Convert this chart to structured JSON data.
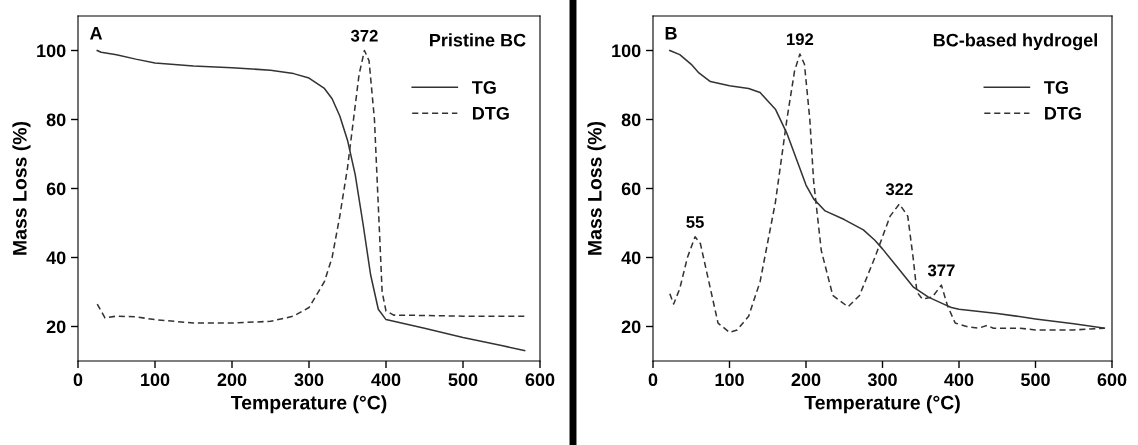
{
  "chart_data": [
    {
      "type": "line",
      "title": "A",
      "xlabel": "Temperature (°C)",
      "ylabel": "Mass Loss (%)",
      "xlim": [
        0,
        600
      ],
      "ylim": [
        10,
        110
      ],
      "xticks": [
        0,
        100,
        200,
        300,
        400,
        500,
        600
      ],
      "yticks": [
        20,
        40,
        60,
        80,
        100
      ],
      "legend": "top right",
      "grid": false,
      "annotations": [
        "Pristine BC",
        {
          "text": "372",
          "x": 372,
          "y": 100
        }
      ],
      "series": [
        {
          "name": "TG",
          "color": "#333333",
          "line_style": "solid",
          "x": [
            25,
            30,
            50,
            75,
            100,
            150,
            200,
            250,
            280,
            300,
            320,
            330,
            340,
            350,
            360,
            370,
            380,
            390,
            400,
            450,
            500,
            550,
            580
          ],
          "values": [
            100,
            99.5,
            98.8,
            97.5,
            96.4,
            95.5,
            95.0,
            94.3,
            93.3,
            92,
            89,
            86,
            81,
            74,
            64,
            50,
            35,
            25,
            22,
            19.5,
            16.8,
            14.5,
            13
          ]
        },
        {
          "name": "DTG",
          "color": "#333333",
          "line_style": "dashed",
          "x": [
            25,
            35,
            50,
            75,
            100,
            150,
            200,
            250,
            280,
            300,
            320,
            330,
            340,
            350,
            360,
            365,
            372,
            378,
            385,
            390,
            395,
            400,
            410,
            450,
            500,
            580
          ],
          "values": [
            26.5,
            22.5,
            23,
            22.8,
            22,
            21.0,
            21.0,
            21.5,
            23,
            25.5,
            33,
            40,
            52,
            66,
            84,
            93,
            100,
            97,
            80,
            55,
            30,
            24.5,
            23.3,
            23.2,
            23,
            23
          ]
        }
      ]
    },
    {
      "type": "line",
      "title": "B",
      "xlabel": "Temperature (°C)",
      "ylabel": "Mass Loss (%)",
      "xlim": [
        0,
        600
      ],
      "ylim": [
        10,
        110
      ],
      "xticks": [
        0,
        100,
        200,
        300,
        400,
        500,
        600
      ],
      "yticks": [
        20,
        40,
        60,
        80,
        100
      ],
      "legend": "top right",
      "grid": false,
      "annotations": [
        "BC-based hydrogel",
        {
          "text": "55",
          "x": 55,
          "y": 46
        },
        {
          "text": "192",
          "x": 192,
          "y": 99
        },
        {
          "text": "322",
          "x": 322,
          "y": 55.5
        },
        {
          "text": "377",
          "x": 377,
          "y": 32
        }
      ],
      "series": [
        {
          "name": "TG",
          "color": "#333333",
          "line_style": "solid",
          "x": [
            22,
            35,
            50,
            60,
            75,
            100,
            125,
            140,
            160,
            175,
            190,
            200,
            210,
            225,
            250,
            275,
            290,
            300,
            320,
            340,
            360,
            380,
            390,
            400,
            450,
            500,
            550,
            590
          ],
          "values": [
            100,
            98.8,
            96,
            93.5,
            91,
            89.8,
            89,
            87.8,
            83,
            76,
            67,
            61,
            57,
            53.5,
            51,
            48,
            45,
            42.5,
            37,
            31.5,
            28.5,
            26.5,
            25.5,
            25,
            23.8,
            22.2,
            20.8,
            19.5
          ]
        },
        {
          "name": "DTG",
          "color": "#333333",
          "line_style": "dashed",
          "x": [
            22,
            27,
            35,
            45,
            55,
            62,
            75,
            85,
            100,
            110,
            125,
            140,
            160,
            175,
            185,
            192,
            198,
            205,
            210,
            220,
            235,
            255,
            270,
            290,
            310,
            322,
            333,
            340,
            345,
            352,
            365,
            377,
            385,
            395,
            410,
            425,
            437,
            445,
            480,
            500,
            550,
            590
          ],
          "values": [
            29.5,
            26.5,
            31,
            40,
            46,
            44,
            31,
            21,
            18.3,
            19,
            23,
            33,
            56,
            80,
            94,
            99,
            96,
            80,
            62,
            42,
            29,
            25.7,
            29,
            40,
            52,
            55.5,
            52,
            40,
            30,
            28,
            28.5,
            32,
            26,
            21,
            20,
            19.5,
            20.3,
            19.5,
            19.5,
            19,
            19,
            19.5
          ]
        }
      ]
    }
  ]
}
